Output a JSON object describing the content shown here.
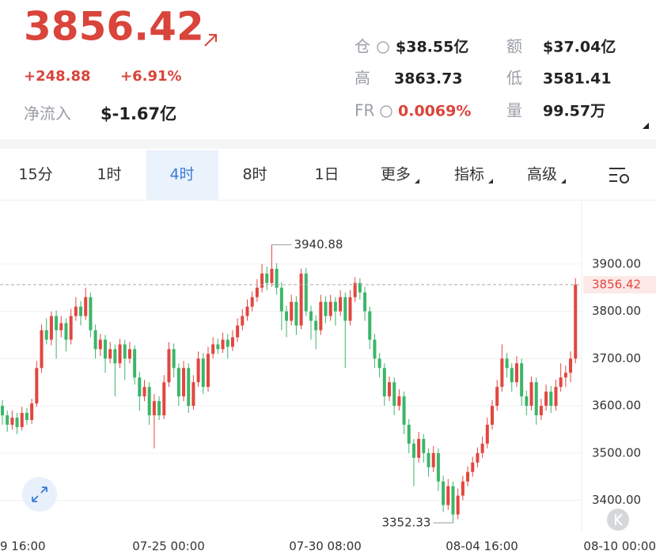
{
  "header": {
    "price": "3856.42",
    "change": "+248.88",
    "change_pct": "+6.91%",
    "net_inflow_label": "净流入",
    "net_inflow": "$-1.67亿"
  },
  "stats": [
    {
      "label": "仓",
      "value": "$38.55亿"
    },
    {
      "label": "额",
      "value": "$37.04亿"
    },
    {
      "label": "高",
      "value": "3863.73"
    },
    {
      "label": "低",
      "value": "3581.41"
    },
    {
      "label": "FR",
      "value": "0.0069%"
    },
    {
      "label": "量",
      "value": "99.57万"
    }
  ],
  "tabs": [
    "15分",
    "1时",
    "4时",
    "8时",
    "1日",
    "更多",
    "指标",
    "高级"
  ],
  "chart": {
    "type": "candlestick",
    "up_color": "#e2463f",
    "down_color": "#3db56a",
    "ylim": [
      3334,
      4032
    ],
    "yticks": [
      {
        "value": 3400,
        "label": "3400.00"
      },
      {
        "value": 3500,
        "label": "3500.00"
      },
      {
        "value": 3600,
        "label": "3600.00"
      },
      {
        "value": 3700,
        "label": "3700.00"
      },
      {
        "value": 3800,
        "label": "3800.00"
      },
      {
        "value": 3900,
        "label": "3900.00"
      }
    ],
    "xticks": [
      "9 16:00",
      "07-25 00:00",
      "07-30 08:00",
      "08-04 16:00",
      "08-10 00:00"
    ],
    "candles": [
      [
        3600,
        3612,
        3560,
        3580
      ],
      [
        3580,
        3590,
        3545,
        3560
      ],
      [
        3560,
        3590,
        3550,
        3575
      ],
      [
        3575,
        3585,
        3540,
        3555
      ],
      [
        3555,
        3598,
        3548,
        3585
      ],
      [
        3585,
        3595,
        3560,
        3570
      ],
      [
        3570,
        3615,
        3562,
        3605
      ],
      [
        3605,
        3695,
        3598,
        3680
      ],
      [
        3680,
        3772,
        3670,
        3760
      ],
      [
        3760,
        3785,
        3730,
        3740
      ],
      [
        3740,
        3800,
        3728,
        3790
      ],
      [
        3790,
        3802,
        3700,
        3760
      ],
      [
        3760,
        3790,
        3745,
        3775
      ],
      [
        3775,
        3785,
        3715,
        3740
      ],
      [
        3740,
        3805,
        3730,
        3790
      ],
      [
        3790,
        3830,
        3780,
        3810
      ],
      [
        3810,
        3822,
        3770,
        3790
      ],
      [
        3790,
        3850,
        3782,
        3830
      ],
      [
        3830,
        3840,
        3745,
        3760
      ],
      [
        3760,
        3772,
        3700,
        3720
      ],
      [
        3720,
        3752,
        3705,
        3740
      ],
      [
        3740,
        3750,
        3670,
        3700
      ],
      [
        3700,
        3735,
        3690,
        3720
      ],
      [
        3720,
        3730,
        3620,
        3690
      ],
      [
        3690,
        3742,
        3680,
        3730
      ],
      [
        3730,
        3740,
        3655,
        3700
      ],
      [
        3700,
        3735,
        3690,
        3720
      ],
      [
        3720,
        3728,
        3645,
        3660
      ],
      [
        3660,
        3672,
        3590,
        3620
      ],
      [
        3620,
        3655,
        3610,
        3640
      ],
      [
        3640,
        3650,
        3560,
        3580
      ],
      [
        3580,
        3625,
        3510,
        3610
      ],
      [
        3610,
        3620,
        3570,
        3580
      ],
      [
        3580,
        3665,
        3572,
        3650
      ],
      [
        3650,
        3735,
        3640,
        3720
      ],
      [
        3720,
        3732,
        3660,
        3680
      ],
      [
        3680,
        3690,
        3600,
        3620
      ],
      [
        3620,
        3695,
        3610,
        3680
      ],
      [
        3680,
        3690,
        3585,
        3600
      ],
      [
        3600,
        3665,
        3592,
        3650
      ],
      [
        3650,
        3715,
        3640,
        3700
      ],
      [
        3700,
        3712,
        3625,
        3640
      ],
      [
        3640,
        3725,
        3630,
        3710
      ],
      [
        3710,
        3745,
        3700,
        3730
      ],
      [
        3730,
        3742,
        3710,
        3720
      ],
      [
        3720,
        3755,
        3712,
        3740
      ],
      [
        3740,
        3752,
        3700,
        3725
      ],
      [
        3725,
        3760,
        3716,
        3745
      ],
      [
        3745,
        3785,
        3735,
        3770
      ],
      [
        3770,
        3805,
        3760,
        3790
      ],
      [
        3790,
        3825,
        3780,
        3810
      ],
      [
        3810,
        3842,
        3800,
        3830
      ],
      [
        3830,
        3868,
        3820,
        3850
      ],
      [
        3850,
        3900,
        3840,
        3880
      ],
      [
        3880,
        3895,
        3845,
        3860
      ],
      [
        3860,
        3940.88,
        3852,
        3890
      ],
      [
        3890,
        3902,
        3835,
        3850
      ],
      [
        3850,
        3862,
        3760,
        3800
      ],
      [
        3800,
        3812,
        3745,
        3780
      ],
      [
        3780,
        3835,
        3770,
        3820
      ],
      [
        3820,
        3832,
        3750,
        3770
      ],
      [
        3770,
        3890,
        3762,
        3880
      ],
      [
        3880,
        3892,
        3790,
        3800
      ],
      [
        3800,
        3812,
        3740,
        3780
      ],
      [
        3780,
        3792,
        3720,
        3760
      ],
      [
        3760,
        3835,
        3750,
        3820
      ],
      [
        3820,
        3832,
        3775,
        3790
      ],
      [
        3790,
        3835,
        3780,
        3820
      ],
      [
        3820,
        3830,
        3770,
        3800
      ],
      [
        3800,
        3845,
        3790,
        3830
      ],
      [
        3830,
        3840,
        3680,
        3780
      ],
      [
        3780,
        3845,
        3770,
        3830
      ],
      [
        3830,
        3872,
        3820,
        3860
      ],
      [
        3860,
        3870,
        3825,
        3840
      ],
      [
        3840,
        3852,
        3780,
        3800
      ],
      [
        3800,
        3810,
        3720,
        3740
      ],
      [
        3740,
        3752,
        3680,
        3700
      ],
      [
        3700,
        3712,
        3660,
        3680
      ],
      [
        3680,
        3690,
        3600,
        3620
      ],
      [
        3620,
        3662,
        3610,
        3650
      ],
      [
        3650,
        3660,
        3580,
        3600
      ],
      [
        3600,
        3635,
        3590,
        3620
      ],
      [
        3620,
        3630,
        3540,
        3560
      ],
      [
        3560,
        3572,
        3500,
        3520
      ],
      [
        3520,
        3530,
        3430,
        3490
      ],
      [
        3490,
        3545,
        3480,
        3530
      ],
      [
        3530,
        3540,
        3480,
        3500
      ],
      [
        3500,
        3510,
        3450,
        3470
      ],
      [
        3470,
        3515,
        3460,
        3500
      ],
      [
        3500,
        3510,
        3420,
        3440
      ],
      [
        3440,
        3452,
        3375,
        3390
      ],
      [
        3390,
        3445,
        3380,
        3430
      ],
      [
        3430,
        3440,
        3352.33,
        3370
      ],
      [
        3370,
        3425,
        3360,
        3410
      ],
      [
        3410,
        3452,
        3400,
        3440
      ],
      [
        3440,
        3472,
        3430,
        3460
      ],
      [
        3460,
        3492,
        3450,
        3480
      ],
      [
        3480,
        3512,
        3470,
        3500
      ],
      [
        3500,
        3535,
        3490,
        3520
      ],
      [
        3520,
        3575,
        3510,
        3560
      ],
      [
        3560,
        3612,
        3550,
        3600
      ],
      [
        3600,
        3655,
        3590,
        3640
      ],
      [
        3640,
        3730,
        3630,
        3700
      ],
      [
        3700,
        3712,
        3660,
        3680
      ],
      [
        3680,
        3690,
        3630,
        3650
      ],
      [
        3650,
        3705,
        3640,
        3690
      ],
      [
        3690,
        3700,
        3600,
        3620
      ],
      [
        3620,
        3632,
        3580,
        3600
      ],
      [
        3600,
        3662,
        3590,
        3650
      ],
      [
        3650,
        3660,
        3560,
        3580
      ],
      [
        3580,
        3615,
        3570,
        3600
      ],
      [
        3600,
        3645,
        3590,
        3630
      ],
      [
        3630,
        3642,
        3585,
        3600
      ],
      [
        3600,
        3655,
        3590,
        3640
      ],
      [
        3640,
        3690,
        3630,
        3660
      ],
      [
        3660,
        3685,
        3640,
        3670
      ],
      [
        3670,
        3715,
        3650,
        3700
      ],
      [
        3700,
        3870,
        3690,
        3856.42
      ]
    ]
  }
}
